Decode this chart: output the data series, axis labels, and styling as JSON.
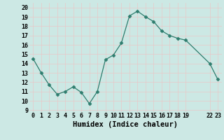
{
  "x": [
    0,
    1,
    2,
    3,
    4,
    5,
    6,
    7,
    8,
    9,
    10,
    11,
    12,
    13,
    14,
    15,
    16,
    17,
    18,
    19,
    22,
    23
  ],
  "y": [
    14.5,
    13.0,
    11.7,
    10.7,
    11.0,
    11.5,
    10.9,
    9.7,
    11.0,
    14.4,
    14.9,
    16.2,
    19.1,
    19.6,
    19.0,
    18.5,
    17.5,
    17.0,
    16.7,
    16.5,
    14.0,
    12.3
  ],
  "xticks": [
    0,
    1,
    2,
    3,
    4,
    5,
    6,
    7,
    8,
    9,
    10,
    11,
    12,
    13,
    14,
    15,
    16,
    17,
    18,
    19,
    22,
    23
  ],
  "xtick_labels": [
    "0",
    "1",
    "2",
    "3",
    "4",
    "5",
    "6",
    "7",
    "8",
    "9",
    "10",
    "11",
    "12",
    "13",
    "14",
    "15",
    "16",
    "17",
    "18",
    "19",
    "22",
    "23"
  ],
  "yticks": [
    9,
    10,
    11,
    12,
    13,
    14,
    15,
    16,
    17,
    18,
    19,
    20
  ],
  "ytick_labels": [
    "9",
    "10",
    "11",
    "12",
    "13",
    "14",
    "15",
    "16",
    "17",
    "18",
    "19",
    "20"
  ],
  "ylim": [
    8.8,
    20.5
  ],
  "xlim": [
    -0.5,
    23.5
  ],
  "xlabel": "Humidex (Indice chaleur)",
  "line_color": "#2e7d6e",
  "marker": "D",
  "marker_size": 2.5,
  "bg_color": "#cce8e4",
  "grid_color_major": "#e8c8c8",
  "grid_color_minor": "#e8c8c8",
  "tick_fontsize": 6.0,
  "xlabel_fontsize": 7.5
}
